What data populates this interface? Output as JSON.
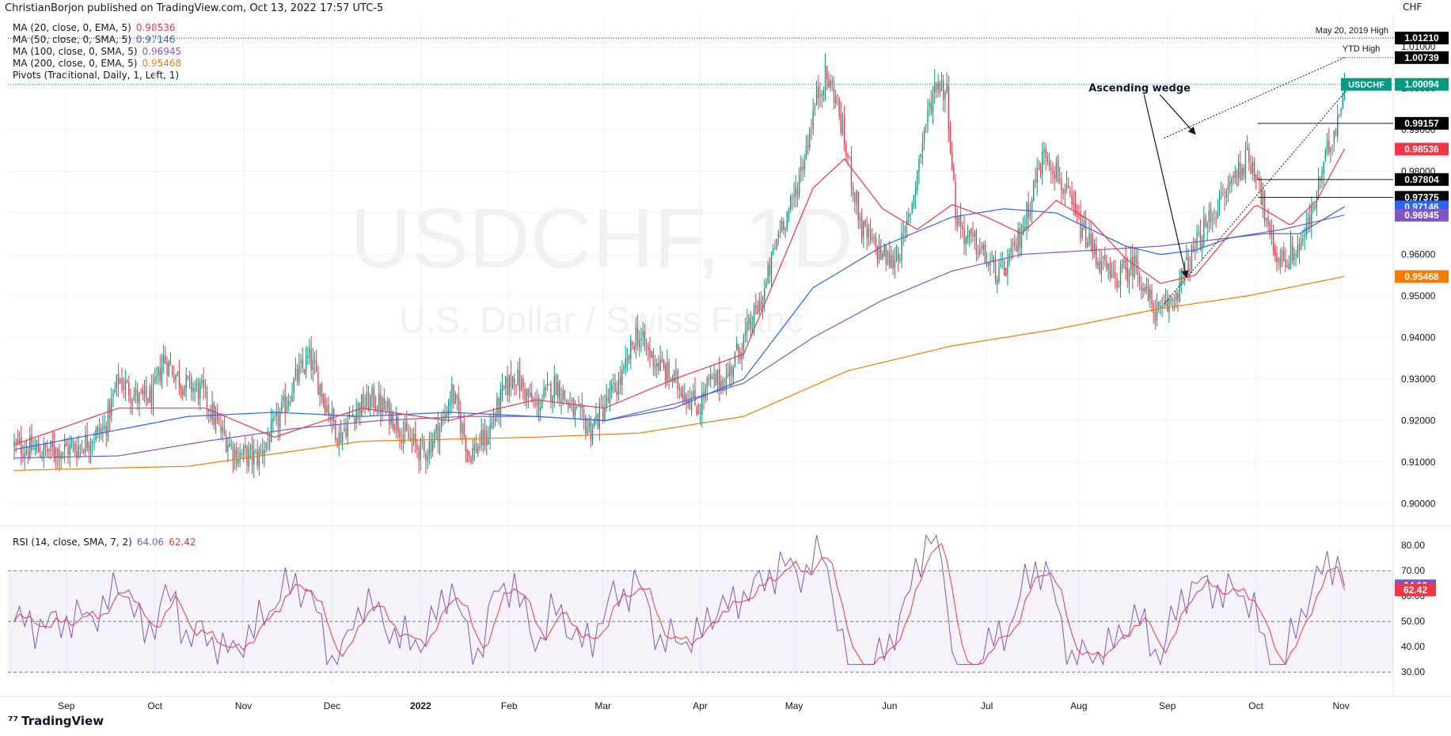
{
  "header": {
    "publisher": "ChristianBorjon published on TradingView.com, Oct 13, 2022 17:57 UTC-5"
  },
  "watermark": {
    "symbol": "USDCHF, 1D",
    "name": "U.S. Dollar / Swiss Franc"
  },
  "legend": {
    "ma20": {
      "label": "MA (20, close, 0, EMA, 5)",
      "value": "0.98536",
      "color": "#f23645"
    },
    "ma50": {
      "label": "MA (50, close, 0, SMA, 5)",
      "value": "0.97146",
      "color": "#2962ff"
    },
    "ma100": {
      "label": "MA (100, close, 0, SMA, 5)",
      "value": "0.96945",
      "color": "#7e57c2"
    },
    "ma200": {
      "label": "MA (200, close, 0, EMA, 5)",
      "value": "0.95468",
      "color": "#f57c00"
    },
    "pivots": {
      "label": "Pivots (Traditional, Daily, 1, Left, 1)"
    }
  },
  "rsi_legend": {
    "label": "RSI (14, close, SMA, 7, 2)",
    "value1": "64.06",
    "value2": "62.42"
  },
  "currency": "CHF",
  "brand": "TradingView",
  "colors": {
    "up": "#089981",
    "down": "#f23645",
    "rsi": "#7e57c2",
    "rsi_ma": "#f23645",
    "ma200": "#f57c00",
    "ma50": "#2962ff",
    "ma100": "#7e57c2",
    "ma20": "#f23645"
  },
  "chart_data": [
    {
      "type": "candlestick",
      "symbol": "USDCHF",
      "timeframe": "1D",
      "title": "U.S. Dollar / Swiss Franc",
      "ylim": [
        0.8955,
        1.0165
      ],
      "y_ticks": [
        "0.90000",
        "0.91000",
        "0.92000",
        "0.93000",
        "0.94000",
        "0.95000",
        "0.96000",
        "0.97000",
        "0.98000",
        "0.99000",
        "1.00000",
        "1.01000"
      ],
      "x_ticks": [
        "Sep",
        "Oct",
        "Nov",
        "Dec",
        "2022",
        "Feb",
        "Mar",
        "Apr",
        "May",
        "Jun",
        "Jul",
        "Aug",
        "Sep",
        "Oct",
        "Nov"
      ],
      "x_tick_days": [
        30,
        81,
        132,
        183,
        234,
        285,
        339,
        395,
        449,
        504,
        560,
        613,
        664,
        715,
        764
      ],
      "last_day": 766,
      "price_path": [
        [
          0,
          0.914
        ],
        [
          18,
          0.9125
        ],
        [
          36,
          0.9135
        ],
        [
          52,
          0.918
        ],
        [
          60,
          0.93
        ],
        [
          72,
          0.925
        ],
        [
          80,
          0.926
        ],
        [
          86,
          0.935
        ],
        [
          97,
          0.929
        ],
        [
          108,
          0.927
        ],
        [
          118,
          0.918
        ],
        [
          128,
          0.912
        ],
        [
          140,
          0.911
        ],
        [
          152,
          0.92
        ],
        [
          162,
          0.93
        ],
        [
          170,
          0.935
        ],
        [
          178,
          0.926
        ],
        [
          187,
          0.916
        ],
        [
          197,
          0.923
        ],
        [
          207,
          0.925
        ],
        [
          218,
          0.921
        ],
        [
          226,
          0.916
        ],
        [
          236,
          0.912
        ],
        [
          247,
          0.92
        ],
        [
          252,
          0.927
        ],
        [
          262,
          0.912
        ],
        [
          272,
          0.916
        ],
        [
          282,
          0.927
        ],
        [
          288,
          0.931
        ],
        [
          300,
          0.923
        ],
        [
          312,
          0.929
        ],
        [
          322,
          0.922
        ],
        [
          332,
          0.918
        ],
        [
          345,
          0.927
        ],
        [
          351,
          0.931
        ],
        [
          358,
          0.941
        ],
        [
          366,
          0.936
        ],
        [
          374,
          0.932
        ],
        [
          384,
          0.928
        ],
        [
          394,
          0.923
        ],
        [
          400,
          0.929
        ],
        [
          410,
          0.93
        ],
        [
          416,
          0.936
        ],
        [
          423,
          0.942
        ],
        [
          432,
          0.951
        ],
        [
          441,
          0.967
        ],
        [
          448,
          0.972
        ],
        [
          455,
          0.984
        ],
        [
          462,
          0.998
        ],
        [
          467,
          1.003
        ],
        [
          473,
          0.998
        ],
        [
          480,
          0.983
        ],
        [
          488,
          0.966
        ],
        [
          495,
          0.962
        ],
        [
          505,
          0.958
        ],
        [
          512,
          0.963
        ],
        [
          518,
          0.975
        ],
        [
          524,
          0.99
        ],
        [
          531,
          1.002
        ],
        [
          537,
          0.999
        ],
        [
          542,
          0.97
        ],
        [
          548,
          0.964
        ],
        [
          555,
          0.962
        ],
        [
          562,
          0.957
        ],
        [
          568,
          0.955
        ],
        [
          575,
          0.96
        ],
        [
          582,
          0.968
        ],
        [
          588,
          0.978
        ],
        [
          594,
          0.985
        ],
        [
          600,
          0.98
        ],
        [
          608,
          0.972
        ],
        [
          616,
          0.965
        ],
        [
          624,
          0.959
        ],
        [
          632,
          0.954
        ],
        [
          640,
          0.956
        ],
        [
          646,
          0.958
        ],
        [
          652,
          0.95
        ],
        [
          660,
          0.945
        ],
        [
          668,
          0.95
        ],
        [
          676,
          0.958
        ],
        [
          683,
          0.964
        ],
        [
          690,
          0.97
        ],
        [
          697,
          0.974
        ],
        [
          702,
          0.979
        ],
        [
          710,
          0.983
        ],
        [
          716,
          0.98
        ],
        [
          722,
          0.965
        ],
        [
          728,
          0.959
        ],
        [
          733,
          0.959
        ],
        [
          740,
          0.962
        ],
        [
          746,
          0.968
        ],
        [
          752,
          0.978
        ],
        [
          757,
          0.986
        ],
        [
          762,
          0.993
        ],
        [
          766,
          1.0009
        ]
      ],
      "indicators": {
        "ma20_ema": {
          "last": 0.98536,
          "points": [
            [
              0,
              0.9142
            ],
            [
              60,
              0.923
            ],
            [
              110,
              0.923
            ],
            [
              150,
              0.916
            ],
            [
              200,
              0.923
            ],
            [
              250,
              0.92
            ],
            [
              300,
              0.925
            ],
            [
              340,
              0.923
            ],
            [
              380,
              0.93
            ],
            [
              420,
              0.936
            ],
            [
              460,
              0.976
            ],
            [
              478,
              0.983
            ],
            [
              500,
              0.971
            ],
            [
              520,
              0.966
            ],
            [
              540,
              0.972
            ],
            [
              560,
              0.969
            ],
            [
              580,
              0.965
            ],
            [
              600,
              0.973
            ],
            [
              620,
              0.968
            ],
            [
              640,
              0.959
            ],
            [
              660,
              0.953
            ],
            [
              680,
              0.955
            ],
            [
              700,
              0.965
            ],
            [
              715,
              0.972
            ],
            [
              735,
              0.967
            ],
            [
              750,
              0.973
            ],
            [
              766,
              0.9854
            ]
          ]
        },
        "ma50_sma": {
          "last": 0.97146,
          "points": [
            [
              0,
              0.913
            ],
            [
              50,
              0.917
            ],
            [
              100,
              0.921
            ],
            [
              150,
              0.922
            ],
            [
              200,
              0.921
            ],
            [
              250,
              0.922
            ],
            [
              300,
              0.921
            ],
            [
              340,
              0.92
            ],
            [
              380,
              0.923
            ],
            [
              420,
              0.93
            ],
            [
              460,
              0.952
            ],
            [
              500,
              0.962
            ],
            [
              540,
              0.969
            ],
            [
              570,
              0.971
            ],
            [
              600,
              0.97
            ],
            [
              620,
              0.966
            ],
            [
              640,
              0.962
            ],
            [
              660,
              0.96
            ],
            [
              680,
              0.961
            ],
            [
              700,
              0.964
            ],
            [
              720,
              0.965
            ],
            [
              740,
              0.965
            ],
            [
              766,
              0.9715
            ]
          ]
        },
        "ma100_sma": {
          "last": 0.96945,
          "points": [
            [
              0,
              0.911
            ],
            [
              60,
              0.9115
            ],
            [
              110,
              0.915
            ],
            [
              160,
              0.918
            ],
            [
              210,
              0.92
            ],
            [
              260,
              0.921
            ],
            [
              300,
              0.921
            ],
            [
              340,
              0.92
            ],
            [
              380,
              0.924
            ],
            [
              420,
              0.929
            ],
            [
              460,
              0.94
            ],
            [
              500,
              0.949
            ],
            [
              540,
              0.956
            ],
            [
              580,
              0.96
            ],
            [
              620,
              0.961
            ],
            [
              660,
              0.962
            ],
            [
              700,
              0.964
            ],
            [
              730,
              0.966
            ],
            [
              766,
              0.9695
            ]
          ]
        },
        "ma200_ema": {
          "last": 0.95468,
          "points": [
            [
              0,
              0.908
            ],
            [
              100,
              0.909
            ],
            [
              200,
              0.915
            ],
            [
              300,
              0.916
            ],
            [
              360,
              0.917
            ],
            [
              420,
              0.921
            ],
            [
              480,
              0.932
            ],
            [
              540,
              0.938
            ],
            [
              600,
              0.942
            ],
            [
              660,
              0.947
            ],
            [
              710,
              0.95
            ],
            [
              766,
              0.9547
            ]
          ]
        }
      },
      "price_labels": [
        {
          "text": "1.01210",
          "value": 1.0121,
          "style": "black",
          "note": "May 20, 2019 High"
        },
        {
          "text": "1.00739",
          "value": 1.00739,
          "style": "black",
          "note": "YTD High"
        },
        {
          "text": "1.00094",
          "value": 1.00094,
          "style": "teal",
          "tag": "USDCHF"
        },
        {
          "text": "0.99157",
          "value": 0.99157,
          "style": "black"
        },
        {
          "text": "0.98536",
          "value": 0.98536,
          "style": "red"
        },
        {
          "text": "0.97804",
          "value": 0.97804,
          "style": "black"
        },
        {
          "text": "0.97375",
          "value": 0.97375,
          "style": "black"
        },
        {
          "text": "0.97146",
          "value": 0.97146,
          "style": "blue"
        },
        {
          "text": "0.96945",
          "value": 0.96945,
          "style": "purple"
        },
        {
          "text": "0.95468",
          "value": 0.95468,
          "style": "orange"
        }
      ],
      "annotations": [
        {
          "text": "Ascending wedge",
          "type": "label"
        },
        {
          "text": "YTD High",
          "type": "label"
        },
        {
          "text": "May 20, 2019 High",
          "type": "label"
        }
      ],
      "wedge": {
        "upper": [
          [
            662,
            0.988
          ],
          [
            766,
            1.0074
          ]
        ],
        "lower": [
          [
            662,
            0.948
          ],
          [
            766,
            1.0
          ]
        ]
      }
    },
    {
      "type": "line",
      "title": "RSI (14, close, SMA, 7, 2)",
      "ylim": [
        26,
        86
      ],
      "y_ticks": [
        "30.00",
        "40.00",
        "50.00",
        "60.00",
        "70.00",
        "80.00"
      ],
      "band": [
        30,
        70
      ],
      "series": [
        {
          "name": "RSI",
          "color": "#7e57c2",
          "last": 64.06
        },
        {
          "name": "RSI MA",
          "color": "#f23645",
          "last": 62.42
        }
      ]
    }
  ]
}
